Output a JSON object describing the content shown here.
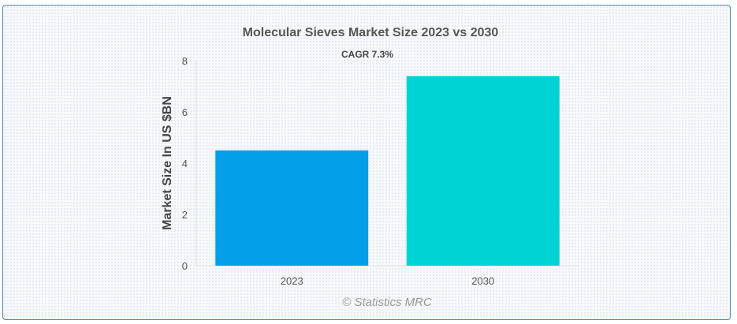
{
  "chart_data": {
    "type": "bar",
    "title": "Molecular Sieves Market Size 2023 vs 2030",
    "subtitle": "CAGR 7.3%",
    "categories": [
      "2023",
      "2030"
    ],
    "values": [
      4.5,
      7.4
    ],
    "colors": [
      "#039fe9",
      "#00d3d3"
    ],
    "xlabel": "",
    "ylabel": "Market Size In US $BN",
    "ylim": [
      0,
      8
    ],
    "yticks": [
      "0",
      "2",
      "4",
      "6",
      "8"
    ],
    "grid": false,
    "legend": "none"
  },
  "credit": "© Statistics MRC"
}
